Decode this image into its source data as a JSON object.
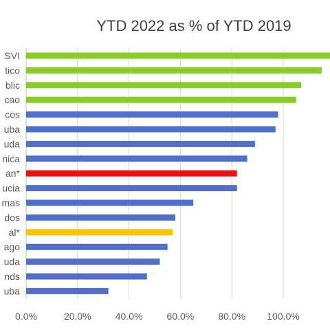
{
  "chart_data": {
    "type": "bar",
    "orientation": "horizontal",
    "title": "YTD 2022 as % of YTD 2019",
    "xlabel": "",
    "ylabel": "",
    "xlim": [
      0,
      120
    ],
    "x_ticks": [
      "0.0%",
      "20.0%",
      "40.0%",
      "60.0%",
      "80.0%",
      "100.0%",
      "12"
    ],
    "grid": "vertical",
    "legend": "none",
    "categories": [
      "SVI",
      "tico",
      "blic",
      "cao",
      "cos",
      "uba",
      "uda",
      "nica",
      "an*",
      "ucia",
      "mas",
      "dos",
      "al*",
      "ago",
      "uda",
      "nds",
      "uba"
    ],
    "values": [
      121,
      115,
      107,
      105,
      98,
      97,
      89,
      86,
      82,
      82,
      65,
      58,
      57,
      55,
      52,
      47,
      32
    ],
    "bar_colors": [
      "#88cc2a",
      "#88cc2a",
      "#88cc2a",
      "#88cc2a",
      "#4f6fcb",
      "#4f6fcb",
      "#4f6fcb",
      "#4f6fcb",
      "#ee1111",
      "#4f6fcb",
      "#4f6fcb",
      "#4f6fcb",
      "#ffc000",
      "#4f6fcb",
      "#4f6fcb",
      "#4f6fcb",
      "#4f6fcb"
    ]
  }
}
